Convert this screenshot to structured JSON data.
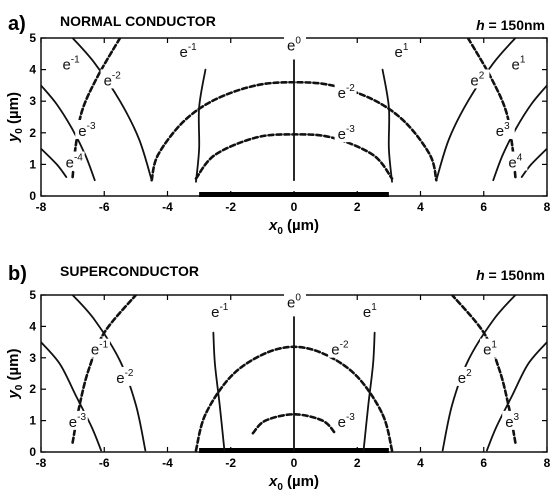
{
  "chart_data": [
    {
      "type": "line",
      "panel": "a)",
      "title": "NORMAL CONDUCTOR",
      "annotation": {
        "var": "h",
        "text": " = 150nm"
      },
      "xlabel": {
        "main": "x",
        "sub": "0",
        "unit": " (µm)"
      },
      "ylabel": {
        "main": "y",
        "sub": "0",
        "unit": " (µm)"
      },
      "xlim": [
        -8,
        8
      ],
      "ylim": [
        0,
        5
      ],
      "xticks": [
        "-8",
        "-6",
        "-4",
        "-2",
        "0",
        "2",
        "4",
        "6",
        "8"
      ],
      "yticks": [
        "0",
        "1",
        "2",
        "3",
        "4",
        "5"
      ],
      "strip": {
        "x": [
          -3,
          3
        ],
        "y": 0
      },
      "series": [
        {
          "style": "solid",
          "label": {
            "base": "e",
            "sup": "0"
          },
          "label_pos": [
            0,
            4.6
          ],
          "x": [
            0,
            0
          ],
          "y": [
            0.5,
            4.3
          ]
        },
        {
          "style": "dashed",
          "label": {
            "base": "e",
            "sup": "-2"
          },
          "label_pos": [
            1.6,
            3.1
          ],
          "x": [
            -4.5,
            -4.3,
            -3.5,
            -2.5,
            -1.2,
            0,
            1.2,
            2.5,
            3.5,
            4.3,
            4.5
          ],
          "y": [
            0.5,
            1.3,
            2.35,
            3.05,
            3.5,
            3.6,
            3.5,
            3.05,
            2.35,
            1.3,
            0.5
          ]
        },
        {
          "style": "dashed",
          "label": {
            "base": "e",
            "sup": "-3"
          },
          "label_pos": [
            1.6,
            1.8
          ],
          "x": [
            -3.1,
            -2.5,
            -1.2,
            0,
            1.2,
            2.5,
            3.1
          ],
          "y": [
            0.55,
            1.3,
            1.85,
            1.95,
            1.85,
            1.3,
            0.55
          ]
        },
        {
          "style": "solid",
          "label": {
            "base": "e",
            "sup": "-1"
          },
          "label_pos": [
            -3.4,
            4.4
          ],
          "x": [
            -3.1,
            -3.0,
            -3.0,
            -2.8
          ],
          "y": [
            0.45,
            1.5,
            2.8,
            4.0
          ]
        },
        {
          "style": "solid",
          "label": {
            "base": "e",
            "sup": "1"
          },
          "label_pos": [
            3.4,
            4.4
          ],
          "x": [
            3.1,
            3.0,
            3.0,
            2.8
          ],
          "y": [
            0.45,
            1.5,
            2.8,
            4.0
          ]
        },
        {
          "style": "solid",
          "label": {
            "base": "e",
            "sup": "-2"
          },
          "label_pos": [
            -5.8,
            3.5
          ],
          "x": [
            -4.5,
            -4.9,
            -5.5,
            -6.3,
            -7.0
          ],
          "y": [
            0.5,
            1.8,
            3.0,
            4.2,
            5.0
          ]
        },
        {
          "style": "solid",
          "label": {
            "base": "e",
            "sup": "2"
          },
          "label_pos": [
            5.8,
            3.5
          ],
          "x": [
            4.5,
            4.9,
            5.5,
            6.3,
            7.0
          ],
          "y": [
            0.5,
            1.8,
            3.0,
            4.2,
            5.0
          ]
        },
        {
          "style": "dashed",
          "label": {
            "base": "e",
            "sup": "-1"
          },
          "label_pos": [
            -7.1,
            4.0
          ],
          "x": [
            -7.0,
            -6.9,
            -6.7,
            -6.2,
            -5.5
          ],
          "y": [
            0.6,
            1.6,
            2.7,
            3.8,
            5.0
          ]
        },
        {
          "style": "dashed",
          "label": {
            "base": "e",
            "sup": "1"
          },
          "label_pos": [
            7.1,
            4.0
          ],
          "x": [
            7.0,
            6.9,
            6.7,
            6.2,
            5.5
          ],
          "y": [
            0.6,
            1.6,
            2.7,
            3.8,
            5.0
          ]
        },
        {
          "style": "solid",
          "label": {
            "base": "e",
            "sup": "-3"
          },
          "label_pos": [
            -6.6,
            1.9
          ],
          "x": [
            -6.3,
            -6.6,
            -7.0,
            -7.5,
            -8.0
          ],
          "y": [
            0.5,
            1.3,
            2.1,
            2.9,
            3.5
          ]
        },
        {
          "style": "solid",
          "label": {
            "base": "e",
            "sup": "3"
          },
          "label_pos": [
            6.6,
            1.9
          ],
          "x": [
            6.3,
            6.6,
            7.0,
            7.5,
            8.0
          ],
          "y": [
            0.5,
            1.3,
            2.1,
            2.9,
            3.5
          ]
        },
        {
          "style": "solid",
          "label": {
            "base": "e",
            "sup": "-4"
          },
          "label_pos": [
            -7.0,
            0.9
          ],
          "x": [
            -7.2,
            -7.5,
            -8.0
          ],
          "y": [
            0.6,
            1.0,
            1.5
          ]
        },
        {
          "style": "solid",
          "label": {
            "base": "e",
            "sup": "4"
          },
          "label_pos": [
            7.0,
            0.9
          ],
          "x": [
            7.2,
            7.5,
            8.0
          ],
          "y": [
            0.6,
            1.0,
            1.5
          ]
        }
      ]
    },
    {
      "type": "line",
      "panel": "b)",
      "title": "SUPERCONDUCTOR",
      "annotation": {
        "var": "h",
        "text": " = 150nm"
      },
      "xlabel": {
        "main": "x",
        "sub": "0",
        "unit": " (µm)"
      },
      "ylabel": {
        "main": "y",
        "sub": "0",
        "unit": " (µm)"
      },
      "xlim": [
        -8,
        8
      ],
      "ylim": [
        0,
        5
      ],
      "xticks": [
        "-8",
        "-6",
        "-4",
        "-2",
        "0",
        "2",
        "4",
        "6",
        "8"
      ],
      "yticks": [
        "0",
        "1",
        "2",
        "3",
        "4",
        "5"
      ],
      "strip": {
        "x": [
          -3,
          3
        ],
        "y": 0
      },
      "series": [
        {
          "style": "solid",
          "label": {
            "base": "e",
            "sup": "0"
          },
          "label_pos": [
            0,
            4.6
          ],
          "x": [
            0,
            0
          ],
          "y": [
            0.05,
            4.3
          ]
        },
        {
          "style": "dashed",
          "label": {
            "base": "e",
            "sup": "-2"
          },
          "label_pos": [
            1.4,
            3.1
          ],
          "x": [
            -3.1,
            -2.8,
            -2,
            -1,
            0,
            1,
            2,
            2.8,
            3.1
          ],
          "y": [
            0.05,
            1.2,
            2.4,
            3.1,
            3.35,
            3.1,
            2.4,
            1.2,
            0.05
          ]
        },
        {
          "style": "dashed",
          "label": {
            "base": "e",
            "sup": "-3"
          },
          "label_pos": [
            1.6,
            0.8
          ],
          "x": [
            -1.3,
            -0.9,
            0,
            0.9,
            1.3
          ],
          "y": [
            0.6,
            1.0,
            1.2,
            1.0,
            0.6
          ]
        },
        {
          "style": "solid",
          "label": {
            "base": "e",
            "sup": "-1"
          },
          "label_pos": [
            -2.4,
            4.3
          ],
          "x": [
            -2.2,
            -2.35,
            -2.5,
            -2.55
          ],
          "y": [
            0.05,
            1.5,
            2.8,
            3.8
          ]
        },
        {
          "style": "solid",
          "label": {
            "base": "e",
            "sup": "1"
          },
          "label_pos": [
            2.4,
            4.3
          ],
          "x": [
            2.2,
            2.35,
            2.5,
            2.55
          ],
          "y": [
            0.05,
            1.5,
            2.8,
            3.8
          ]
        },
        {
          "style": "solid",
          "label": {
            "base": "e",
            "sup": "-2"
          },
          "label_pos": [
            -5.4,
            2.2
          ],
          "x": [
            -4.7,
            -5.0,
            -5.5,
            -6.3,
            -7.0
          ],
          "y": [
            0.05,
            1.5,
            2.9,
            4.2,
            5.0
          ]
        },
        {
          "style": "solid",
          "label": {
            "base": "e",
            "sup": "2"
          },
          "label_pos": [
            5.4,
            2.2
          ],
          "x": [
            4.7,
            5.0,
            5.5,
            6.3,
            7.0
          ],
          "y": [
            0.05,
            1.5,
            2.9,
            4.2,
            5.0
          ]
        },
        {
          "style": "dashed",
          "label": {
            "base": "e",
            "sup": "-1"
          },
          "label_pos": [
            -6.2,
            3.1
          ],
          "x": [
            -7.0,
            -6.8,
            -6.5,
            -6.0,
            -5.0
          ],
          "y": [
            0.3,
            1.4,
            2.6,
            3.8,
            5.0
          ]
        },
        {
          "style": "dashed",
          "label": {
            "base": "e",
            "sup": "1"
          },
          "label_pos": [
            6.2,
            3.1
          ],
          "x": [
            7.0,
            6.8,
            6.5,
            6.0,
            5.0
          ],
          "y": [
            0.3,
            1.4,
            2.6,
            3.8,
            5.0
          ]
        },
        {
          "style": "solid",
          "label": {
            "base": "e",
            "sup": "-3"
          },
          "label_pos": [
            -6.9,
            0.8
          ],
          "x": [
            -6.1,
            -6.4,
            -6.9,
            -7.4,
            -8.0
          ],
          "y": [
            0.05,
            0.8,
            1.8,
            2.8,
            3.5
          ]
        },
        {
          "style": "solid",
          "label": {
            "base": "e",
            "sup": "3"
          },
          "label_pos": [
            6.9,
            0.8
          ],
          "x": [
            6.1,
            6.4,
            6.9,
            7.4,
            8.0
          ],
          "y": [
            0.05,
            0.8,
            1.8,
            2.8,
            3.5
          ]
        }
      ]
    }
  ]
}
